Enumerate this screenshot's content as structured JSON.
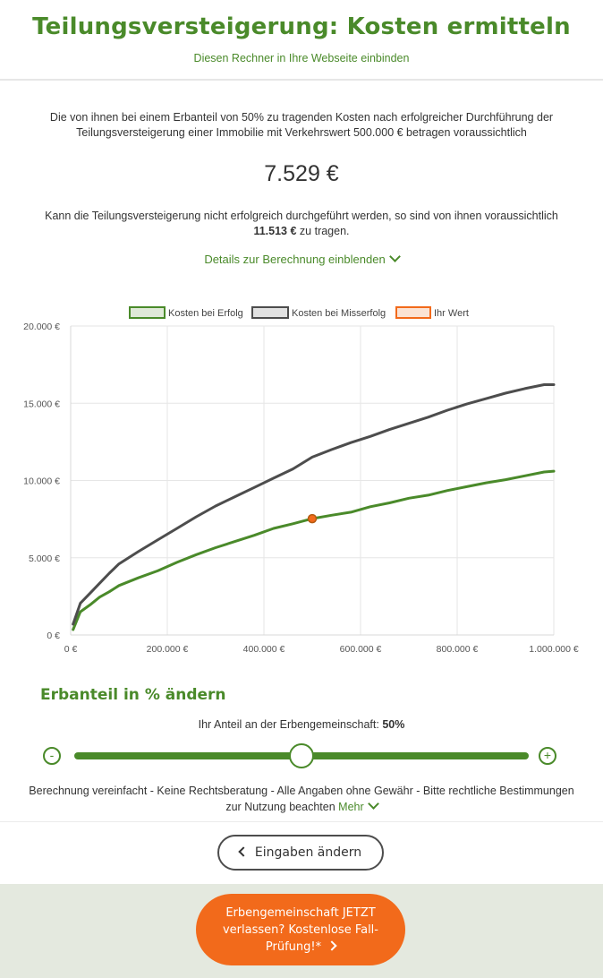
{
  "header": {
    "title": "Teilungsversteigerung: Kosten ermitteln",
    "embed_link": "Diesen Rechner in Ihre Webseite einbinden"
  },
  "result": {
    "intro": "Die von ihnen bei einem Erbanteil von 50% zu tragenden Kosten nach erfolgreicher Durchführung der Teilungsversteigerung einer Immobilie mit Verkehrswert 500.000 € betragen voraussichtlich",
    "value": "7.529 €",
    "fail_text_pre": "Kann die Teilungsversteigerung nicht erfolgreich durchgeführt werden, so sind von ihnen voraussichtlich",
    "fail_value": "11.513 €",
    "fail_text_post": "zu tragen.",
    "details_link": "Details zur Berechnung einblenden"
  },
  "chart_data": {
    "type": "line",
    "legend": [
      "Kosten bei Erfolg",
      "Kosten bei Misserfolg",
      "Ihr Wert"
    ],
    "legend_position": "top-center",
    "x_ticks": [
      "0 €",
      "200.000 €",
      "400.000 €",
      "600.000 €",
      "800.000 €",
      "1.000.000 €"
    ],
    "y_ticks": [
      "0 €",
      "5.000 €",
      "10.000 €",
      "15.000 €",
      "20.000 €"
    ],
    "xlim": [
      0,
      1000000
    ],
    "ylim": [
      0,
      20000
    ],
    "grid": true,
    "colors": {
      "success": "#4a8a2a",
      "failure": "#4d4d4d",
      "marker": "#f26a1b",
      "marker_stroke": "#b35a10"
    },
    "series": [
      {
        "name": "Kosten bei Erfolg",
        "x": [
          5000,
          20000,
          40000,
          60000,
          80000,
          100000,
          140000,
          180000,
          220000,
          260000,
          300000,
          340000,
          380000,
          420000,
          460000,
          500000,
          540000,
          580000,
          620000,
          660000,
          700000,
          740000,
          780000,
          820000,
          860000,
          900000,
          940000,
          980000,
          1000000
        ],
        "y": [
          350,
          1500,
          1950,
          2450,
          2800,
          3200,
          3700,
          4150,
          4700,
          5200,
          5650,
          6050,
          6450,
          6900,
          7200,
          7529,
          7750,
          7950,
          8300,
          8550,
          8850,
          9050,
          9350,
          9600,
          9850,
          10050,
          10300,
          10550,
          10600
        ]
      },
      {
        "name": "Kosten bei Misserfolg",
        "x": [
          5000,
          20000,
          40000,
          60000,
          80000,
          100000,
          140000,
          180000,
          220000,
          260000,
          300000,
          340000,
          380000,
          420000,
          460000,
          500000,
          540000,
          580000,
          620000,
          660000,
          700000,
          740000,
          780000,
          820000,
          860000,
          900000,
          940000,
          980000,
          1000000
        ],
        "y": [
          700,
          2050,
          2700,
          3350,
          4000,
          4600,
          5400,
          6150,
          6900,
          7650,
          8350,
          8950,
          9550,
          10150,
          10750,
          11513,
          12000,
          12450,
          12850,
          13300,
          13700,
          14100,
          14550,
          14950,
          15300,
          15650,
          15950,
          16200,
          16200
        ]
      }
    ],
    "point": {
      "name": "Ihr Wert",
      "x": 500000,
      "y": 7529
    }
  },
  "slider": {
    "heading": "Erbanteil in % ändern",
    "label": "Ihr Anteil an der Erbengemeinschaft:",
    "value": "50%",
    "fraction": 0.5,
    "minus": "-",
    "plus": "+"
  },
  "disclaimer": {
    "text": "Berechnung vereinfacht - Keine Rechtsberatung - Alle Angaben ohne Gewähr - Bitte rechtliche Bestimmungen zur Nutzung beachten",
    "more": "Mehr"
  },
  "buttons": {
    "back": "Eingaben ändern",
    "cta": "Erbengemeinschaft JETZT verlassen? Kostenlose Fall-Prüfung!*"
  },
  "icons": {
    "details": "chevron-down-icon",
    "more": "chevron-down-icon",
    "back": "chevron-left-icon",
    "cta": "chevron-right-icon"
  }
}
